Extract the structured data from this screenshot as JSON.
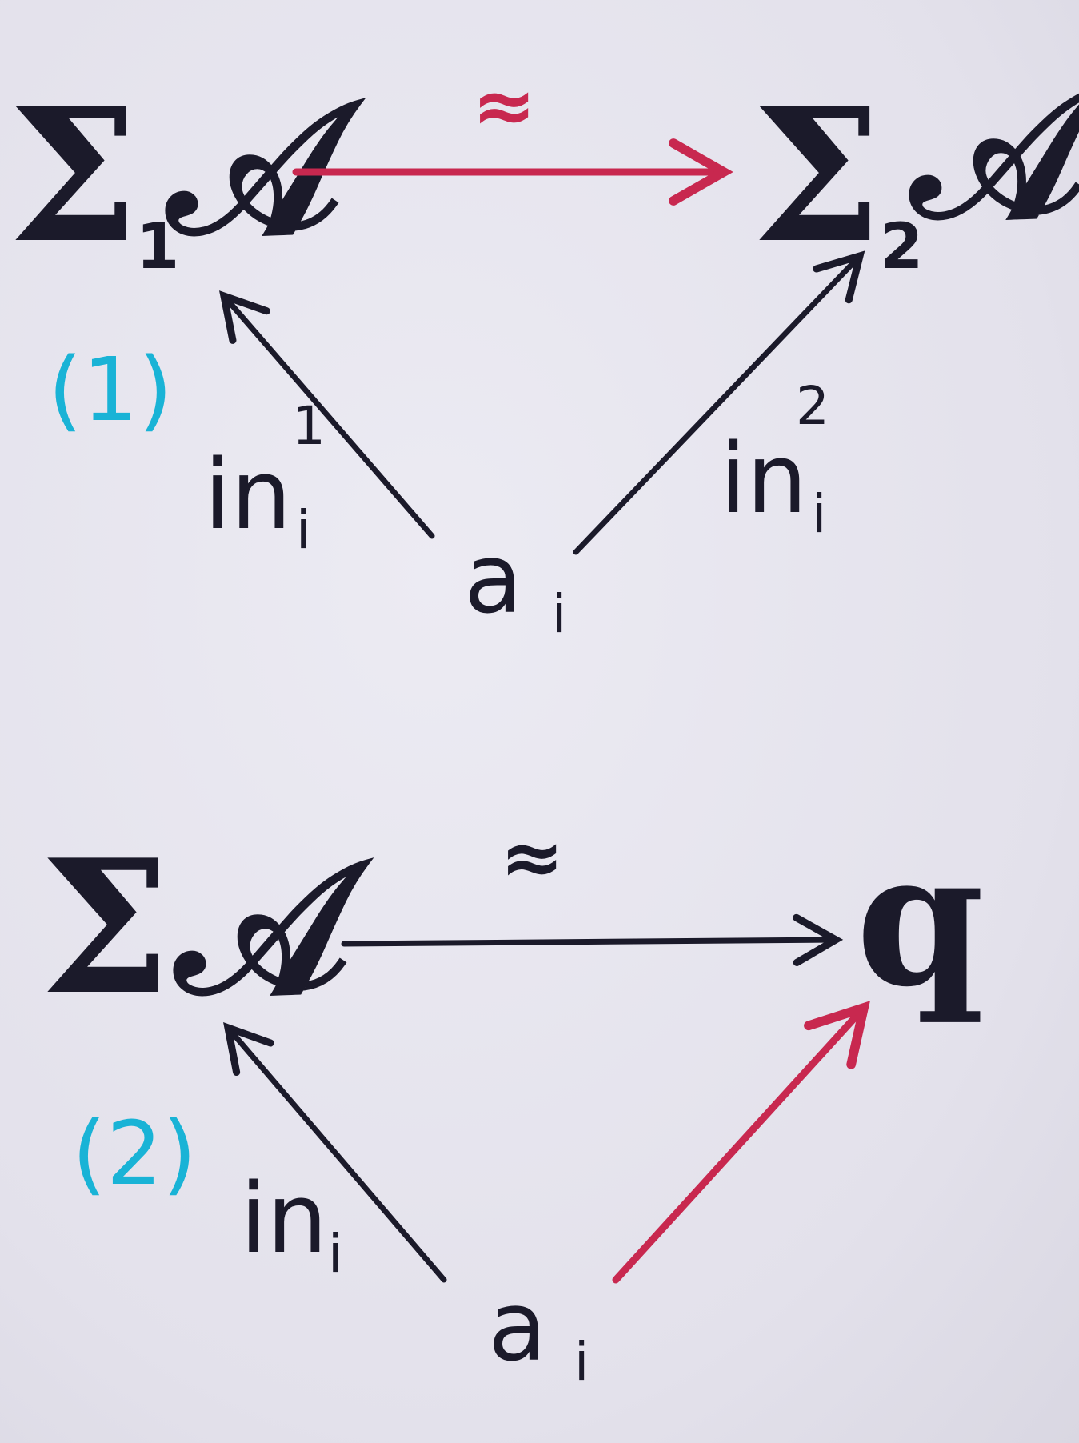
{
  "diagram1": {
    "tag": "(1)",
    "sigma_left": "Σ",
    "sub_left": "1",
    "obj_left": "𝒜",
    "sigma_right": "Σ",
    "sub_right": "2",
    "obj_right": "𝒜",
    "top_arrow_label": "≈",
    "source": "a",
    "source_sub": "i",
    "left_arrow_label": "in",
    "left_arrow_sub": "i",
    "left_arrow_sup": "1",
    "right_arrow_label": "in",
    "right_arrow_sub": "i",
    "right_arrow_sup": "2"
  },
  "diagram2": {
    "tag": "(2)",
    "sigma_left": "Σ",
    "obj_left": "𝒜",
    "obj_right": "q",
    "top_arrow_label": "≈",
    "source": "a",
    "source_sub": "i",
    "left_arrow_label": "in",
    "left_arrow_sub": "i"
  },
  "colors": {
    "ink": "#1b1a2a",
    "highlight": "#c8284f",
    "tag": "#19b3d6",
    "paper": "#e6e4ee"
  }
}
